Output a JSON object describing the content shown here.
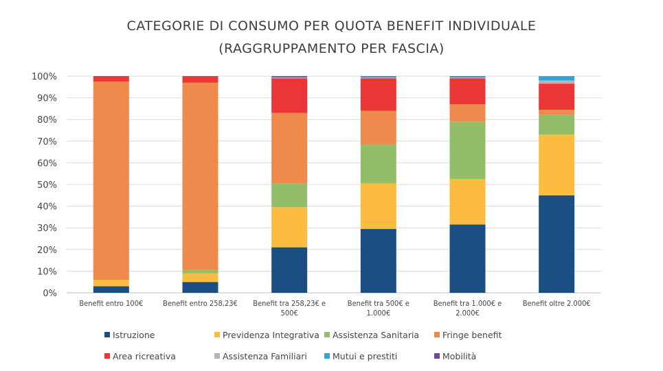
{
  "title_line1": "CATEGORIE DI CONSUMO PER QUOTA BENEFIT INDIVIDUALE",
  "title_line2": "(RAGGRUPPAMENTO PER FASCIA)",
  "chart_data": {
    "type": "bar",
    "stacked": true,
    "title": "CATEGORIE DI CONSUMO PER QUOTA BENEFIT INDIVIDUALE (RAGGRUPPAMENTO PER FASCIA)",
    "ylim": [
      0,
      100
    ],
    "yticks": [
      "0%",
      "10%",
      "20%",
      "30%",
      "40%",
      "50%",
      "60%",
      "70%",
      "80%",
      "90%",
      "100%"
    ],
    "grid": true,
    "legend_position": "bottom",
    "categories": [
      [
        "Benefit entro 100€"
      ],
      [
        "Benefit entro 258,23€"
      ],
      [
        "Benefit tra 258,23€ e",
        "500€"
      ],
      [
        "Benefit tra 500€ e",
        "1.000€"
      ],
      [
        "Benefit tra 1.000€ e",
        "2.000€"
      ],
      [
        "Benefit oltre 2.000€"
      ]
    ],
    "series": [
      {
        "name": "Istruzione",
        "color": "#1b4f82",
        "values": [
          3,
          5,
          21,
          29.5,
          31.5,
          45
        ]
      },
      {
        "name": "Previdenza Integrativa",
        "color": "#fbbc3f",
        "values": [
          3,
          4,
          18.5,
          21,
          21,
          28
        ]
      },
      {
        "name": "Assistenza Sanitaria",
        "color": "#94bd6a",
        "values": [
          0,
          1.5,
          11,
          18,
          26.5,
          9
        ]
      },
      {
        "name": "Fringe benefit",
        "color": "#ef8a4d",
        "values": [
          91.5,
          86.5,
          32.5,
          15.5,
          8,
          2.5
        ]
      },
      {
        "name": "Area ricreativa",
        "color": "#ec3537",
        "values": [
          2.5,
          3,
          16,
          15,
          12,
          12
        ]
      },
      {
        "name": "Assistenza Familiari",
        "color": "#b4b4b4",
        "values": [
          0,
          0,
          0.3,
          0.3,
          0.3,
          1.5
        ]
      },
      {
        "name": "Mutui e prestiti",
        "color": "#2ea3dc",
        "values": [
          0,
          0,
          0.2,
          0.5,
          0.5,
          2
        ]
      },
      {
        "name": "Mobilità",
        "color": "#6a4aa0",
        "values": [
          0,
          0,
          0.5,
          0.2,
          0.2,
          0
        ]
      }
    ]
  }
}
